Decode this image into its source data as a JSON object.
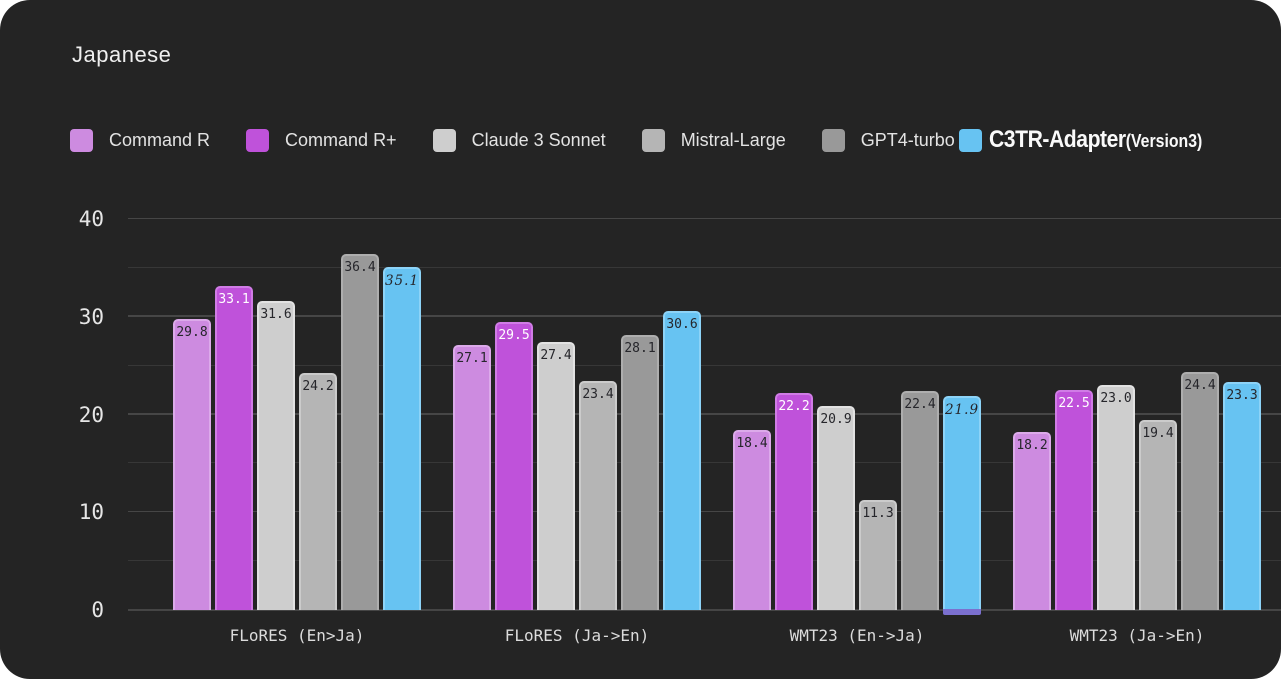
{
  "title": "Japanese",
  "colors": {
    "background": "#242424",
    "grid_major": "#464646",
    "grid_minor": "#373737",
    "axis_line": "#454545",
    "tick_label": "#e6e6e6",
    "category_label": "#dcdcdc"
  },
  "legend": {
    "items": [
      {
        "label": "Command R",
        "color": "#cd8be0",
        "emphasis": false
      },
      {
        "label": "Command R+",
        "color": "#bf52da",
        "emphasis": false
      },
      {
        "label": "Claude 3 Sonnet",
        "color": "#cecece",
        "emphasis": false
      },
      {
        "label": "Mistral-Large",
        "color": "#b5b5b5",
        "emphasis": false
      },
      {
        "label": "GPT4-turbo",
        "color": "#999999",
        "emphasis": false
      },
      {
        "label": "C3TR-Adapter",
        "suffix": "(Version3)",
        "color": "#67c3f2",
        "emphasis": true
      }
    ]
  },
  "chart_data": {
    "type": "bar",
    "title": "Japanese",
    "categories": [
      "FLoRES (En>Ja)",
      "FLoRES (Ja->En)",
      "WMT23 (En->Ja)",
      "WMT23 (Ja->En)"
    ],
    "series": [
      {
        "name": "Command R",
        "color": "#cd8be0",
        "border_color": "#dcaaea",
        "label_color": "#26262b",
        "values": [
          29.8,
          27.1,
          18.4,
          18.2
        ]
      },
      {
        "name": "Command R+",
        "color": "#bf52da",
        "border_color": "#d07ce6",
        "label_color": "#ffffff",
        "values": [
          33.1,
          29.5,
          22.2,
          22.5
        ]
      },
      {
        "name": "Claude 3 Sonnet",
        "color": "#cecece",
        "border_color": "#e2e2e2",
        "label_color": "#26262b",
        "values": [
          31.6,
          27.4,
          20.9,
          23.0
        ]
      },
      {
        "name": "Mistral-Large",
        "color": "#b5b5b5",
        "border_color": "#cbcbcb",
        "label_color": "#26262b",
        "values": [
          24.2,
          23.4,
          11.3,
          19.4
        ]
      },
      {
        "name": "GPT4-turbo",
        "color": "#999999",
        "border_color": "#aeaeae",
        "label_color": "#26262b",
        "values": [
          36.4,
          28.1,
          22.4,
          24.4
        ]
      },
      {
        "name": "C3TR-Adapter (Version3)",
        "color": "#67c3f2",
        "border_color": "#8dd3f7",
        "label_color": "#26262b",
        "values": [
          35.1,
          30.6,
          21.9,
          23.3
        ],
        "hand_value_labels": [
          true,
          false,
          true,
          false
        ],
        "bottom_accent": [
          false,
          false,
          true,
          false
        ],
        "bottom_accent_color": "#7b70cf"
      }
    ],
    "ylim": [
      0,
      40
    ],
    "yticks": [
      0,
      10,
      20,
      30,
      40
    ],
    "grid_step": 5,
    "value_label_decimals": 1,
    "legend_position": "top",
    "grid": true
  }
}
